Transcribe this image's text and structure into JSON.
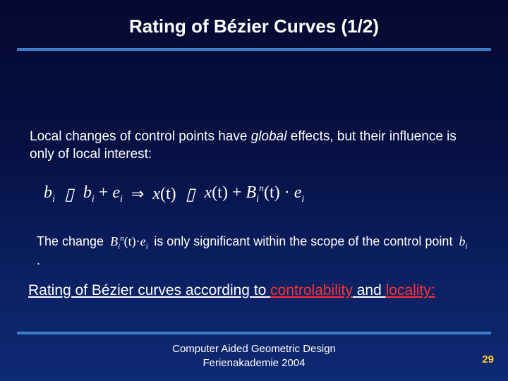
{
  "title": "Rating of Bézier Curves (1/2)",
  "body1_pre": "Local changes of control points have ",
  "body1_italic": "global",
  "body1_post": " effects, but their influence is only of local interest:",
  "formula": {
    "b": "b",
    "i": "i",
    "e": "e",
    "x": "x",
    "t_paren": "(t)",
    "B": "B",
    "n": "n",
    "plus": "+",
    "dot": "·"
  },
  "body2_a": "The change ",
  "body2_b": " is only significant within the scope of the control point ",
  "body2_c": ".",
  "body3_a": "Rating of Bézier curves according to ",
  "body3_b": "controlability",
  "body3_c": " and ",
  "body3_d": "locality:",
  "footer_line1": "Computer Aided Geometric Design",
  "footer_line2": "Ferienakademie 2004",
  "pagenum": "29",
  "colors": {
    "rule": "#3d7cc9",
    "accent_red": "#ff3333",
    "accent_yellow": "#ffcc33"
  }
}
